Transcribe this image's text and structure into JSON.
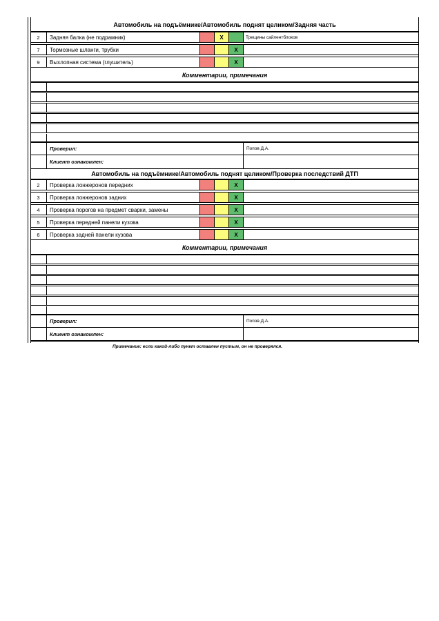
{
  "footnote": "Примечание: если какой-либо пункт оставлен пустым, он не проверялся.",
  "colors": {
    "red": "#F2807D",
    "yellow": "#FCFC7D",
    "green": "#5FBC6C",
    "border": "#000000"
  },
  "labels": {
    "comments_title": "Комментарии, примечания",
    "checked_by": "Проверил:",
    "client_ack": "Клиент ознакомлен:"
  },
  "sections": [
    {
      "title": "Автомобиль на подъёмнике/Автомобиль поднят целиком/Задняя часть",
      "items": [
        {
          "num": "2",
          "label": "Задняя балка (не подрамник)",
          "marks": {
            "red": "",
            "yellow": "X",
            "green": ""
          },
          "comment": "Трещины сайлентблоков"
        },
        {
          "num": "7",
          "label": "Тормозные шланги, трубки",
          "marks": {
            "red": "",
            "yellow": "",
            "green": "X"
          },
          "comment": ""
        },
        {
          "num": "9",
          "label": "Выхлопная система (глушитель)",
          "marks": {
            "red": "",
            "yellow": "",
            "green": "X"
          },
          "comment": ""
        }
      ],
      "checked_by_value": "Попов Д.А.",
      "client_ack_value": ""
    },
    {
      "title": "Автомобиль на подъёмнике/Автомобиль поднят целиком/Проверка последствий ДТП",
      "items": [
        {
          "num": "2",
          "label": "Проверка лонжеронов передних",
          "marks": {
            "red": "",
            "yellow": "",
            "green": "X"
          },
          "comment": ""
        },
        {
          "num": "3",
          "label": "Проверка лонжеронов задних",
          "marks": {
            "red": "",
            "yellow": "",
            "green": "X"
          },
          "comment": ""
        },
        {
          "num": "4",
          "label": "Проверка порогов на предмет сварки, замены",
          "marks": {
            "red": "",
            "yellow": "",
            "green": "X"
          },
          "comment": ""
        },
        {
          "num": "5",
          "label": "Проверка передней панели кузова",
          "marks": {
            "red": "",
            "yellow": "",
            "green": "X"
          },
          "comment": ""
        },
        {
          "num": "6",
          "label": "Проверка задней панели кузова",
          "marks": {
            "red": "",
            "yellow": "",
            "green": "X"
          },
          "comment": ""
        }
      ],
      "checked_by_value": "Попов Д.А.",
      "client_ack_value": ""
    }
  ]
}
